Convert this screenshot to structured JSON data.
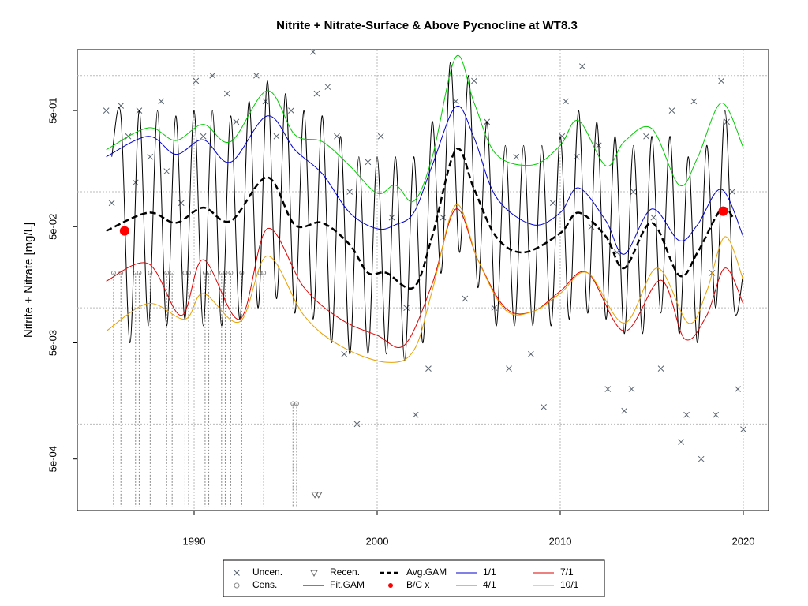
{
  "chart_data": {
    "type": "line",
    "title": "Nitrite + Nitrate-Surface & Above Pycnocline at WT8.3",
    "y_label": "Nitrite + Nitrate [mg/L]",
    "log_y": true,
    "grid": true,
    "xlim": [
      1983.62,
      2021.38
    ],
    "xticks": [
      1990,
      2000,
      2010,
      2020
    ],
    "ylim": [
      0.00018,
      1.67
    ],
    "yticks": [
      {
        "value": 0.5,
        "label": "5e-01"
      },
      {
        "value": 0.05,
        "label": "5e-02"
      },
      {
        "value": 0.005,
        "label": "5e-03"
      },
      {
        "value": 0.0005,
        "label": "5e-04"
      }
    ],
    "ygrid": [
      1,
      0.1,
      0.01,
      0.001
    ],
    "legend_position": "bottom",
    "series": [
      {
        "name": "Uncen.",
        "kind": "points",
        "marker": "x",
        "color": "#5a6470",
        "x": [
          1985.2,
          1985.5,
          1986.0,
          1986.4,
          1986.8,
          1987.0,
          1987.6,
          1988.2,
          1988.5,
          1989.3,
          1990.1,
          1990.5,
          1991.0,
          1991.8,
          1992.3,
          1993.4,
          1993.9,
          1994.5,
          1995.3,
          1996.5,
          1996.7,
          1997.3,
          1997.8,
          1998.5,
          1999.5,
          1998.2,
          1998.9,
          2000.2,
          2000.8,
          2001.6,
          2002.1,
          2002.8,
          2003.6,
          2004.3,
          2004.8,
          2005.3,
          2006.0,
          2006.4,
          2007.2,
          2007.6,
          2008.4,
          2009.1,
          2009.6,
          2010.1,
          2010.3,
          2010.9,
          2011.2,
          2011.7,
          2012.1,
          2012.6,
          2013.1,
          2013.5,
          2013.9,
          2014.0,
          2014.7,
          2015.1,
          2015.5,
          2016.1,
          2016.6,
          2016.9,
          2017.3,
          2017.7,
          2018.3,
          2018.5,
          2018.8,
          2019.1,
          2019.4,
          2019.7,
          2020.0
        ],
        "values": [
          0.5,
          0.08,
          0.55,
          0.3,
          0.12,
          0.5,
          0.2,
          0.6,
          0.15,
          0.08,
          0.9,
          0.3,
          1.0,
          0.7,
          0.4,
          1.0,
          0.6,
          0.3,
          0.5,
          1.6,
          0.7,
          0.8,
          0.3,
          0.1,
          0.18,
          0.004,
          0.001,
          0.3,
          0.06,
          0.01,
          0.0012,
          0.003,
          0.06,
          0.6,
          0.012,
          0.9,
          0.4,
          0.01,
          0.003,
          0.2,
          0.004,
          0.0014,
          0.08,
          0.3,
          0.6,
          0.2,
          1.2,
          0.05,
          0.25,
          0.002,
          0.03,
          0.0013,
          0.002,
          0.1,
          0.3,
          0.06,
          0.003,
          0.5,
          0.0007,
          0.0012,
          0.6,
          0.0005,
          0.02,
          0.0012,
          0.9,
          0.4,
          0.1,
          0.002,
          0.0009
        ]
      },
      {
        "name": "Cens.",
        "kind": "points",
        "marker": "circle",
        "color": "#888888",
        "x": [
          1985.6,
          1986.0,
          1986.8,
          1987.0,
          1987.6,
          1988.5,
          1988.8,
          1989.5,
          1989.7,
          1990.6,
          1990.8,
          1991.5,
          1991.7,
          1992.0,
          1992.6,
          1993.6,
          1993.8,
          1995.4,
          1995.6
        ],
        "values": [
          0.02,
          0.02,
          0.02,
          0.02,
          0.02,
          0.02,
          0.02,
          0.02,
          0.02,
          0.02,
          0.02,
          0.02,
          0.02,
          0.02,
          0.02,
          0.02,
          0.02,
          0.0015,
          0.0015
        ]
      },
      {
        "name": "Recen.",
        "kind": "points",
        "marker": "triangle",
        "color": "#666666",
        "x": [
          1996.6,
          1996.8
        ],
        "values": [
          0.000247,
          0.000247
        ]
      },
      {
        "name": "Fit.GAM",
        "kind": "line",
        "color": "#000000",
        "width": 1,
        "x": [
          1985.5,
          1986.0,
          1986.5,
          1987.0,
          1987.5,
          1988.0,
          1988.5,
          1989.0,
          1989.5,
          1990.0,
          1990.5,
          1991.0,
          1991.5,
          1992.0,
          1992.5,
          1993.0,
          1993.5,
          1994.0,
          1994.5,
          1995.0,
          1995.5,
          1996.0,
          1996.5,
          1997.0,
          1997.5,
          1998.0,
          1998.5,
          1999.0,
          1999.5,
          2000.0,
          2000.5,
          2001.0,
          2001.5,
          2002.0,
          2002.5,
          2003.0,
          2003.5,
          2004.0,
          2004.5,
          2005.0,
          2005.5,
          2006.0,
          2006.5,
          2007.0,
          2007.5,
          2008.0,
          2008.5,
          2009.0,
          2009.5,
          2010.0,
          2010.5,
          2011.0,
          2011.5,
          2012.0,
          2012.5,
          2013.0,
          2013.5,
          2014.0,
          2014.5,
          2015.0,
          2015.5,
          2016.0,
          2016.5,
          2017.0,
          2017.5,
          2018.0,
          2018.5,
          2019.0,
          2019.5,
          2020.0
        ],
        "values": [
          0.2,
          0.45,
          0.005,
          0.5,
          0.007,
          0.5,
          0.007,
          0.45,
          0.008,
          0.5,
          0.007,
          0.5,
          0.007,
          0.45,
          0.008,
          0.6,
          0.01,
          0.9,
          0.012,
          0.7,
          0.009,
          0.5,
          0.008,
          0.45,
          0.005,
          0.3,
          0.004,
          0.2,
          0.004,
          0.2,
          0.004,
          0.2,
          0.0035,
          0.2,
          0.005,
          0.4,
          0.02,
          1.3,
          0.03,
          1.0,
          0.015,
          0.4,
          0.007,
          0.25,
          0.007,
          0.25,
          0.007,
          0.25,
          0.007,
          0.3,
          0.008,
          0.5,
          0.009,
          0.4,
          0.008,
          0.3,
          0.006,
          0.25,
          0.006,
          0.3,
          0.009,
          0.3,
          0.006,
          0.2,
          0.005,
          0.25,
          0.01,
          0.5,
          0.01,
          0.02
        ]
      },
      {
        "name": "Avg.GAM",
        "kind": "line",
        "color": "#000000",
        "width": 2.5,
        "dashed": true,
        "x": [
          1985.2,
          1987.5,
          1989,
          1990.5,
          1992,
          1994,
          1995.5,
          1997,
          1998.5,
          1999.5,
          2000.5,
          2002,
          2003,
          2004.3,
          2005.3,
          2006.5,
          2008,
          2010,
          2011,
          2012.5,
          2013.5,
          2015,
          2016.5,
          2017.5,
          2018.8,
          2019.5
        ],
        "values": [
          0.046,
          0.066,
          0.054,
          0.073,
          0.056,
          0.133,
          0.052,
          0.054,
          0.035,
          0.02,
          0.02,
          0.015,
          0.041,
          0.23,
          0.105,
          0.041,
          0.03,
          0.044,
          0.066,
          0.041,
          0.022,
          0.054,
          0.019,
          0.03,
          0.071,
          0.058
        ]
      },
      {
        "name": "B/C x",
        "kind": "points",
        "marker": "dot",
        "color": "#ff0000",
        "x": [
          1986.2,
          2018.9
        ],
        "values": [
          0.046,
          0.068
        ]
      },
      {
        "name": "1/1",
        "kind": "line",
        "color": "#0000cd",
        "width": 1,
        "x": [
          1985.2,
          1987.5,
          1989,
          1990.5,
          1992,
          1994,
          1995.5,
          1997,
          1998.5,
          2000,
          2001,
          2002,
          2003,
          2004.3,
          2005.3,
          2006.5,
          2008.5,
          2010,
          2011,
          2012.5,
          2013.5,
          2015,
          2016.5,
          2017.5,
          2018.8,
          2020
        ],
        "values": [
          0.2,
          0.3,
          0.21,
          0.28,
          0.18,
          0.45,
          0.23,
          0.143,
          0.066,
          0.048,
          0.052,
          0.066,
          0.167,
          0.54,
          0.29,
          0.09,
          0.052,
          0.066,
          0.108,
          0.056,
          0.029,
          0.071,
          0.038,
          0.052,
          0.105,
          0.041
        ]
      },
      {
        "name": "4/1",
        "kind": "line",
        "color": "#00cc00",
        "width": 1,
        "x": [
          1985.2,
          1987.5,
          1989,
          1990.5,
          1992,
          1994,
          1995.5,
          1997,
          1998.5,
          2000,
          2001,
          2002,
          2003,
          2004.3,
          2005.3,
          2006.5,
          2008.5,
          2010,
          2011,
          2012.5,
          2013.5,
          2015,
          2016.5,
          2017.5,
          2018.8,
          2020
        ],
        "values": [
          0.23,
          0.355,
          0.276,
          0.38,
          0.27,
          0.74,
          0.31,
          0.27,
          0.167,
          0.097,
          0.114,
          0.083,
          0.196,
          1.45,
          0.58,
          0.21,
          0.17,
          0.25,
          0.41,
          0.167,
          0.27,
          0.35,
          0.114,
          0.196,
          0.58,
          0.24
        ]
      },
      {
        "name": "7/1",
        "kind": "line",
        "color": "#dd0000",
        "width": 1,
        "x": [
          1985.2,
          1987.5,
          1989.3,
          1990.5,
          1992.5,
          1994,
          1996,
          1998,
          2000,
          2001.5,
          2003,
          2004.3,
          2005.5,
          2007,
          2008.5,
          2010,
          2011.5,
          2013.5,
          2015.5,
          2016.8,
          2018,
          2019,
          2020
        ],
        "values": [
          0.017,
          0.024,
          0.0086,
          0.026,
          0.008,
          0.048,
          0.015,
          0.008,
          0.0058,
          0.0048,
          0.016,
          0.071,
          0.026,
          0.01,
          0.0093,
          0.0139,
          0.02,
          0.0063,
          0.0173,
          0.0054,
          0.0086,
          0.022,
          0.0108
        ]
      },
      {
        "name": "10/1",
        "kind": "line",
        "color": "#e8a000",
        "width": 1,
        "x": [
          1985.2,
          1987.5,
          1989.5,
          1990.5,
          1992.5,
          1994,
          1996,
          1998,
          2000.5,
          2002,
          2003,
          2004.3,
          2005.5,
          2007,
          2008.5,
          2010,
          2011.5,
          2013.5,
          2015.3,
          2017,
          2018,
          2019,
          2020
        ],
        "values": [
          0.0063,
          0.0109,
          0.008,
          0.0133,
          0.0076,
          0.028,
          0.0086,
          0.0047,
          0.0034,
          0.0043,
          0.0139,
          0.077,
          0.026,
          0.0096,
          0.0093,
          0.0133,
          0.02,
          0.0074,
          0.022,
          0.0074,
          0.0139,
          0.041,
          0.0174
        ]
      }
    ]
  }
}
